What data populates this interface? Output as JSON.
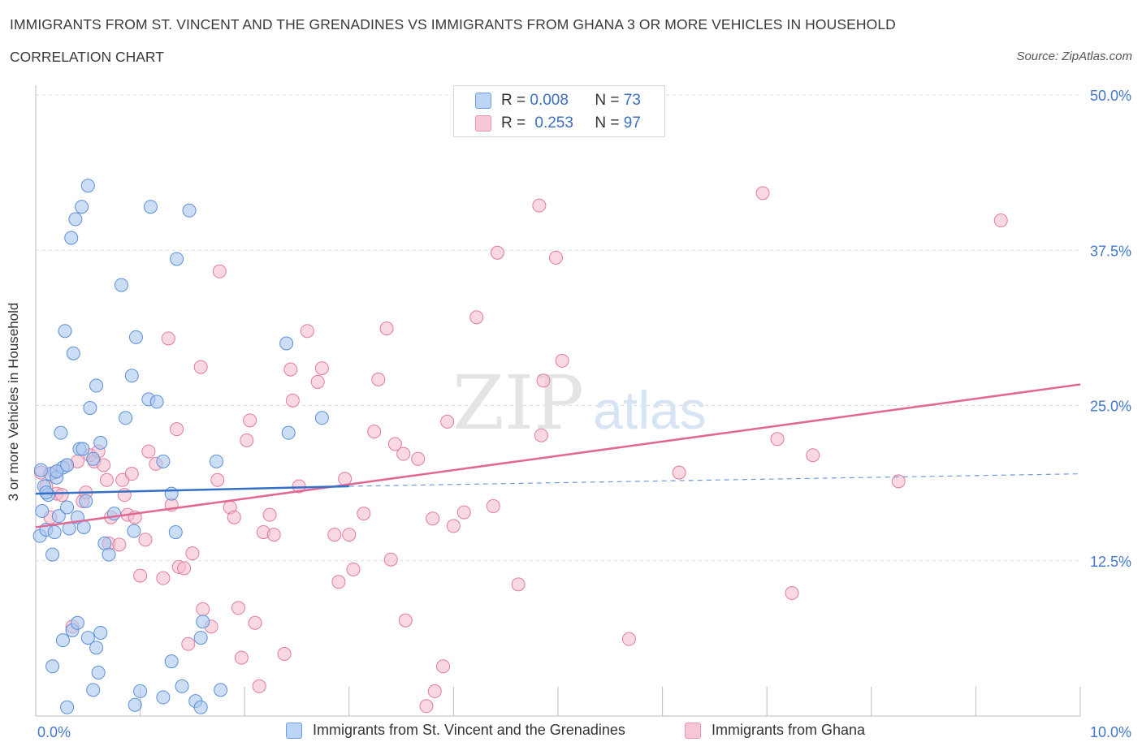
{
  "title": "IMMIGRANTS FROM ST. VINCENT AND THE GRENADINES VS IMMIGRANTS FROM GHANA 3 OR MORE VEHICLES IN HOUSEHOLD",
  "subtitle": "CORRELATION CHART",
  "source": "Source: ZipAtlas.com",
  "watermark": {
    "zip": "ZIP",
    "atlas": "atlas"
  },
  "legend": {
    "series1": {
      "r_label": "R =",
      "r_value": "0.008",
      "n_label": "N =",
      "n_value": "73"
    },
    "series2": {
      "r_label": "R =",
      "r_value": "0.253",
      "n_label": "N =",
      "n_value": "97"
    }
  },
  "colors": {
    "blue_fill": "#aac8f0",
    "blue_stroke": "#5b8fd6",
    "blue_line": "#3570c8",
    "pink_fill": "#f6b8cb",
    "pink_stroke": "#e07c9c",
    "pink_line": "#e06893",
    "tick_label": "#4477cc",
    "grid": "#dddddd"
  },
  "chart_data": {
    "type": "scatter",
    "xlabel": "",
    "ylabel": "3 or more Vehicles in Household",
    "xlim": [
      0,
      10
    ],
    "ylim": [
      0,
      50
    ],
    "x_tick_labels": [
      "0.0%",
      "10.0%"
    ],
    "y_ticks": [
      12.5,
      25.0,
      37.5,
      50.0
    ],
    "y_tick_labels": [
      "12.5%",
      "25.0%",
      "37.5%",
      "50.0%"
    ],
    "grid": true,
    "legend_position": "top-center",
    "series": [
      {
        "name": "Immigrants from St. Vincent and the Grenadines",
        "color": "#5b8fd6",
        "trend": {
          "x": [
            0.0,
            3.0
          ],
          "y": [
            17.9,
            18.5
          ],
          "extended_to_x": 10.0,
          "extended_y": 19.5
        },
        "points": [
          [
            0.04,
            14.5
          ],
          [
            0.06,
            16.5
          ],
          [
            0.08,
            18.5
          ],
          [
            0.1,
            15.0
          ],
          [
            0.12,
            17.8
          ],
          [
            0.14,
            19.5
          ],
          [
            0.16,
            13.0
          ],
          [
            0.18,
            14.8
          ],
          [
            0.2,
            19.2
          ],
          [
            0.22,
            16.1
          ],
          [
            0.24,
            22.8
          ],
          [
            0.26,
            20.0
          ],
          [
            0.28,
            31.0
          ],
          [
            0.3,
            16.8
          ],
          [
            0.32,
            15.1
          ],
          [
            0.34,
            38.5
          ],
          [
            0.36,
            29.2
          ],
          [
            0.38,
            40.0
          ],
          [
            0.4,
            16.0
          ],
          [
            0.42,
            21.5
          ],
          [
            0.44,
            41.0
          ],
          [
            0.46,
            15.2
          ],
          [
            0.48,
            17.3
          ],
          [
            0.5,
            42.7
          ],
          [
            0.52,
            24.8
          ],
          [
            0.55,
            20.7
          ],
          [
            0.58,
            26.6
          ],
          [
            0.62,
            22.0
          ],
          [
            0.66,
            13.9
          ],
          [
            0.7,
            13.0
          ],
          [
            0.75,
            16.3
          ],
          [
            0.82,
            34.7
          ],
          [
            0.86,
            24.0
          ],
          [
            0.92,
            27.4
          ],
          [
            0.94,
            14.9
          ],
          [
            0.96,
            30.5
          ],
          [
            1.08,
            25.5
          ],
          [
            1.1,
            41.0
          ],
          [
            1.16,
            25.3
          ],
          [
            1.22,
            20.5
          ],
          [
            1.3,
            17.9
          ],
          [
            1.34,
            14.8
          ],
          [
            1.35,
            36.8
          ],
          [
            1.47,
            40.7
          ],
          [
            1.73,
            20.5
          ],
          [
            2.4,
            30.0
          ],
          [
            2.42,
            22.8
          ],
          [
            2.74,
            24.0
          ],
          [
            0.16,
            4.0
          ],
          [
            0.26,
            6.1
          ],
          [
            0.3,
            0.7
          ],
          [
            0.35,
            6.9
          ],
          [
            0.4,
            7.5
          ],
          [
            0.5,
            6.3
          ],
          [
            0.55,
            2.1
          ],
          [
            0.58,
            5.5
          ],
          [
            0.6,
            3.5
          ],
          [
            0.62,
            6.7
          ],
          [
            0.95,
            0.9
          ],
          [
            1.0,
            2.0
          ],
          [
            1.22,
            1.5
          ],
          [
            1.3,
            4.4
          ],
          [
            1.4,
            2.4
          ],
          [
            1.53,
            1.2
          ],
          [
            1.58,
            0.7
          ],
          [
            1.58,
            6.3
          ],
          [
            1.6,
            7.6
          ],
          [
            1.77,
            2.1
          ],
          [
            0.05,
            19.8
          ],
          [
            0.1,
            18.0
          ],
          [
            0.2,
            19.7
          ],
          [
            0.3,
            20.2
          ],
          [
            0.45,
            21.5
          ]
        ]
      },
      {
        "name": "Immigrants from Ghana",
        "color": "#e07c9c",
        "trend": {
          "x": [
            0.0,
            10.0
          ],
          "y": [
            15.2,
            26.7
          ]
        },
        "points": [
          [
            0.05,
            19.6
          ],
          [
            0.1,
            18.5
          ],
          [
            0.14,
            16.0
          ],
          [
            0.18,
            19.6
          ],
          [
            0.2,
            17.9
          ],
          [
            0.25,
            17.8
          ],
          [
            0.3,
            20.2
          ],
          [
            0.35,
            7.2
          ],
          [
            0.4,
            20.5
          ],
          [
            0.45,
            17.3
          ],
          [
            0.48,
            18.0
          ],
          [
            0.52,
            21.0
          ],
          [
            0.56,
            20.5
          ],
          [
            0.6,
            21.3
          ],
          [
            0.65,
            20.2
          ],
          [
            0.68,
            19.0
          ],
          [
            0.7,
            13.9
          ],
          [
            0.72,
            16.0
          ],
          [
            0.8,
            13.8
          ],
          [
            0.83,
            19.0
          ],
          [
            0.85,
            17.8
          ],
          [
            0.88,
            16.2
          ],
          [
            0.92,
            19.5
          ],
          [
            0.95,
            16.0
          ],
          [
            1.0,
            11.3
          ],
          [
            1.05,
            14.2
          ],
          [
            1.08,
            21.3
          ],
          [
            1.15,
            20.3
          ],
          [
            1.22,
            11.1
          ],
          [
            1.27,
            30.4
          ],
          [
            1.3,
            17.0
          ],
          [
            1.35,
            23.1
          ],
          [
            1.37,
            12.0
          ],
          [
            1.42,
            11.9
          ],
          [
            1.46,
            5.8
          ],
          [
            1.5,
            13.1
          ],
          [
            1.58,
            28.1
          ],
          [
            1.6,
            8.6
          ],
          [
            1.68,
            7.2
          ],
          [
            1.74,
            19.0
          ],
          [
            1.76,
            35.8
          ],
          [
            1.86,
            16.8
          ],
          [
            1.9,
            16.0
          ],
          [
            1.94,
            8.7
          ],
          [
            1.97,
            4.7
          ],
          [
            2.02,
            22.2
          ],
          [
            2.05,
            23.8
          ],
          [
            2.1,
            7.5
          ],
          [
            2.14,
            2.4
          ],
          [
            2.18,
            14.8
          ],
          [
            2.24,
            16.2
          ],
          [
            2.28,
            14.6
          ],
          [
            2.38,
            5.0
          ],
          [
            2.44,
            27.9
          ],
          [
            2.46,
            25.4
          ],
          [
            2.52,
            18.5
          ],
          [
            2.6,
            31.0
          ],
          [
            2.7,
            26.9
          ],
          [
            2.74,
            28.0
          ],
          [
            2.86,
            14.6
          ],
          [
            2.9,
            10.8
          ],
          [
            2.96,
            19.1
          ],
          [
            3.0,
            14.6
          ],
          [
            3.04,
            11.8
          ],
          [
            3.14,
            16.3
          ],
          [
            3.24,
            22.9
          ],
          [
            3.28,
            27.1
          ],
          [
            3.36,
            31.2
          ],
          [
            3.4,
            12.6
          ],
          [
            3.44,
            21.9
          ],
          [
            3.52,
            21.1
          ],
          [
            3.54,
            7.7
          ],
          [
            3.66,
            20.7
          ],
          [
            3.74,
            0.8
          ],
          [
            3.8,
            15.9
          ],
          [
            3.82,
            2.0
          ],
          [
            3.9,
            4.0
          ],
          [
            3.94,
            23.7
          ],
          [
            4.0,
            15.3
          ],
          [
            4.1,
            16.4
          ],
          [
            4.22,
            32.1
          ],
          [
            4.38,
            16.9
          ],
          [
            4.42,
            37.3
          ],
          [
            4.62,
            10.6
          ],
          [
            4.82,
            41.1
          ],
          [
            4.84,
            22.6
          ],
          [
            4.86,
            27.0
          ],
          [
            4.98,
            36.9
          ],
          [
            5.04,
            28.6
          ],
          [
            5.68,
            6.2
          ],
          [
            6.16,
            19.6
          ],
          [
            6.96,
            42.1
          ],
          [
            7.1,
            22.3
          ],
          [
            7.24,
            9.9
          ],
          [
            7.44,
            21.0
          ],
          [
            8.26,
            18.9
          ],
          [
            9.24,
            39.9
          ]
        ]
      }
    ]
  },
  "bottom_legend": {
    "series1": "Immigrants from St. Vincent and the Grenadines",
    "series2": "Immigrants from Ghana"
  }
}
